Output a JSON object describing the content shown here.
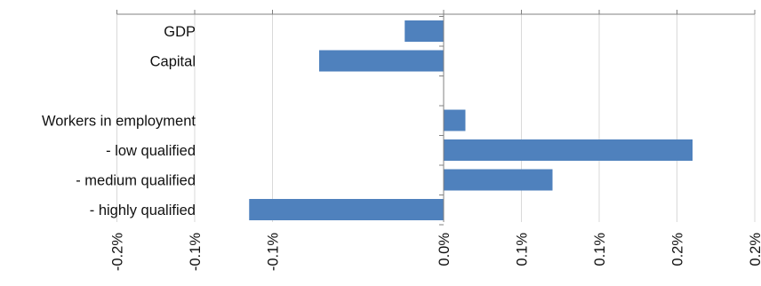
{
  "chart_data": {
    "type": "bar",
    "orientation": "horizontal",
    "title": "",
    "xlabel": "",
    "ylabel": "",
    "categories": [
      "GDP",
      "Capital",
      "",
      "Workers in employment",
      "- low qualified",
      "- medium qualified",
      "- highly qualified"
    ],
    "values": [
      -0.0005,
      -0.0016,
      null,
      0.00028,
      0.0032,
      0.0014,
      -0.0025
    ],
    "xlim": [
      -0.0057,
      0.004
    ],
    "x_ticks": [
      -0.0042,
      -0.0032,
      -0.0022,
      0.0,
      0.001,
      0.002,
      0.003,
      0.004
    ],
    "x_tick_labels": [
      "-0.2%",
      "-0.1%",
      "-0.1%",
      "0.0%",
      "0.1%",
      "0.1%",
      "0.2%",
      "0.2%"
    ],
    "grid": true,
    "legend": "none",
    "colors": {
      "bar": "#4f81bd",
      "grid": "#d9d9d9",
      "axis": "#808080"
    }
  }
}
